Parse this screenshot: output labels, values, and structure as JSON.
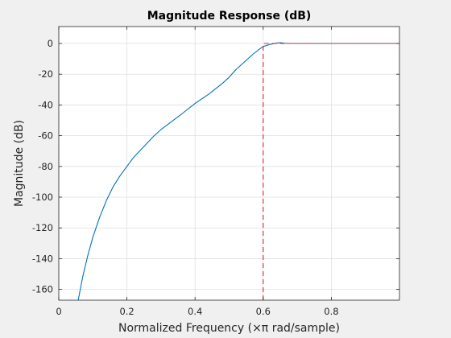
{
  "chart_data": {
    "type": "line",
    "title": "Magnitude Response (dB)",
    "xlabel": "Normalized Frequency (×π rad/sample)",
    "ylabel": "Magnitude (dB)",
    "xlim": [
      0,
      1
    ],
    "ylim": [
      -167,
      11
    ],
    "xticks": [
      0,
      0.2,
      0.4,
      0.6,
      0.8
    ],
    "xtick_labels": [
      "0",
      "0.2",
      "0.4",
      "0.6",
      "0.8"
    ],
    "yticks": [
      0,
      -20,
      -40,
      -60,
      -80,
      -100,
      -120,
      -140,
      -160
    ],
    "ytick_labels": [
      "0",
      "-20",
      "-40",
      "-60",
      "-80",
      "-100",
      "-120",
      "-140",
      "-160"
    ],
    "grid": true,
    "series": [
      {
        "color": "#0072bd",
        "style": "solid",
        "x": [
          0.057,
          0.07,
          0.085,
          0.1,
          0.12,
          0.14,
          0.16,
          0.18,
          0.2,
          0.22,
          0.25,
          0.28,
          0.3,
          0.33,
          0.36,
          0.4,
          0.44,
          0.48,
          0.5,
          0.52,
          0.55,
          0.57,
          0.59,
          0.6,
          0.62,
          0.64,
          0.65,
          0.66,
          0.68,
          0.7,
          0.8,
          0.9,
          1.0
        ],
        "y": [
          -167,
          -152,
          -138,
          -126,
          -113,
          -102,
          -93,
          -86,
          -80,
          -74,
          -67,
          -60,
          -56,
          -51,
          -46,
          -39,
          -33,
          -26,
          -22,
          -17,
          -11,
          -7,
          -3.5,
          -2,
          -0.6,
          0.3,
          0.5,
          0.2,
          0,
          0,
          0,
          0,
          0
        ]
      },
      {
        "color": "#d62728",
        "style": "dashed",
        "x": [
          0.6,
          0.6,
          1.0
        ],
        "y": [
          -167,
          0,
          0
        ]
      }
    ]
  }
}
